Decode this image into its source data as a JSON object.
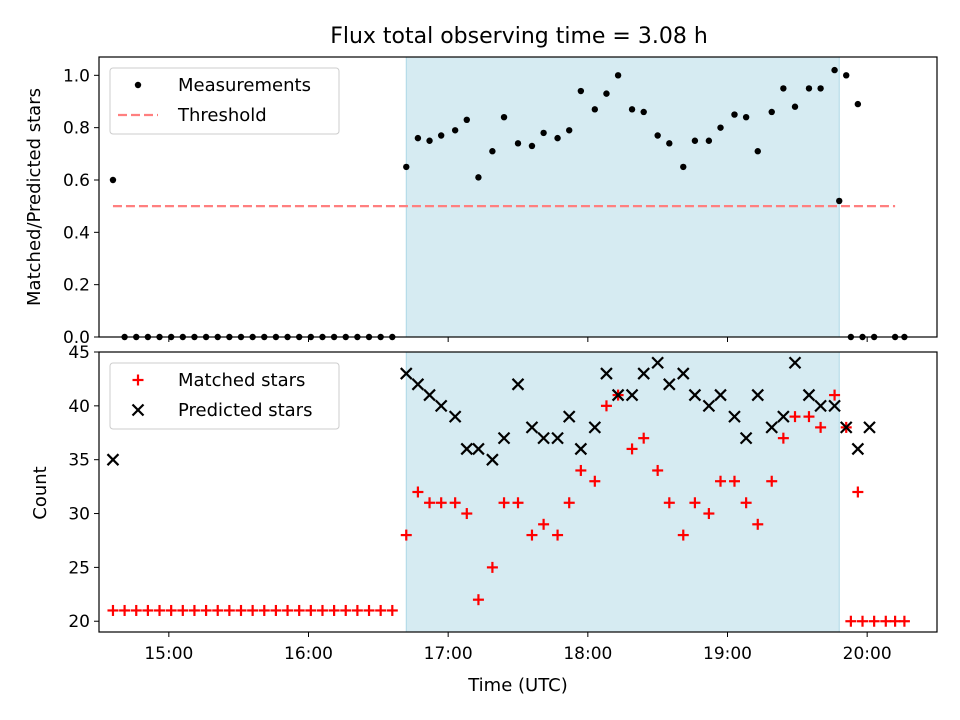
{
  "chart_data": {
    "title": "Flux total observing time = 3.08 h",
    "xlabel": "Time (UTC)",
    "x_ticks": [
      "15:00",
      "16:00",
      "17:00",
      "18:00",
      "19:00",
      "20:00"
    ],
    "x_range": [
      "14:30",
      "20:30"
    ],
    "observing_window": {
      "start": "16:42",
      "end": "19:48",
      "color": "#add8e6"
    },
    "top": {
      "type": "scatter",
      "ylabel": "Matched/Predicted stars",
      "ylim": [
        0,
        1.07
      ],
      "y_ticks": [
        "0.0",
        "0.2",
        "0.4",
        "0.6",
        "0.8",
        "1.0"
      ],
      "legend_position": "top-left",
      "series": [
        {
          "name": "Measurements",
          "type": "scatter",
          "color": "#000000",
          "marker": "dot",
          "points": [
            [
              "14:36",
              0.6
            ],
            [
              "14:41",
              0.0
            ],
            [
              "14:46",
              0.0
            ],
            [
              "14:51",
              0.0
            ],
            [
              "14:56",
              0.0
            ],
            [
              "15:01",
              0.0
            ],
            [
              "15:06",
              0.0
            ],
            [
              "15:11",
              0.0
            ],
            [
              "15:16",
              0.0
            ],
            [
              "15:21",
              0.0
            ],
            [
              "15:26",
              0.0
            ],
            [
              "15:31",
              0.0
            ],
            [
              "15:36",
              0.0
            ],
            [
              "15:41",
              0.0
            ],
            [
              "15:46",
              0.0
            ],
            [
              "15:51",
              0.0
            ],
            [
              "15:56",
              0.0
            ],
            [
              "16:01",
              0.0
            ],
            [
              "16:06",
              0.0
            ],
            [
              "16:11",
              0.0
            ],
            [
              "16:16",
              0.0
            ],
            [
              "16:21",
              0.0
            ],
            [
              "16:26",
              0.0
            ],
            [
              "16:31",
              0.0
            ],
            [
              "16:36",
              0.0
            ],
            [
              "16:42",
              0.65
            ],
            [
              "16:47",
              0.76
            ],
            [
              "16:52",
              0.75
            ],
            [
              "16:57",
              0.77
            ],
            [
              "17:03",
              0.79
            ],
            [
              "17:08",
              0.83
            ],
            [
              "17:13",
              0.61
            ],
            [
              "17:19",
              0.71
            ],
            [
              "17:24",
              0.84
            ],
            [
              "17:30",
              0.74
            ],
            [
              "17:36",
              0.73
            ],
            [
              "17:41",
              0.78
            ],
            [
              "17:47",
              0.76
            ],
            [
              "17:52",
              0.79
            ],
            [
              "17:57",
              0.94
            ],
            [
              "18:03",
              0.87
            ],
            [
              "18:08",
              0.93
            ],
            [
              "18:13",
              1.0
            ],
            [
              "18:19",
              0.87
            ],
            [
              "18:24",
              0.86
            ],
            [
              "18:30",
              0.77
            ],
            [
              "18:35",
              0.74
            ],
            [
              "18:41",
              0.65
            ],
            [
              "18:46",
              0.75
            ],
            [
              "18:52",
              0.75
            ],
            [
              "18:57",
              0.8
            ],
            [
              "19:03",
              0.85
            ],
            [
              "19:08",
              0.84
            ],
            [
              "19:13",
              0.71
            ],
            [
              "19:19",
              0.86
            ],
            [
              "19:24",
              0.95
            ],
            [
              "19:29",
              0.88
            ],
            [
              "19:35",
              0.95
            ],
            [
              "19:40",
              0.95
            ],
            [
              "19:46",
              1.02
            ],
            [
              "19:51",
              1.0
            ],
            [
              "19:56",
              0.89
            ],
            [
              "19:48",
              0.52
            ],
            [
              "19:53",
              0.0
            ],
            [
              "19:58",
              0.0
            ],
            [
              "20:03",
              0.0
            ],
            [
              "20:12",
              0.0
            ],
            [
              "20:16",
              0.0
            ]
          ]
        },
        {
          "name": "Threshold",
          "type": "line",
          "color": "#ff7f7f",
          "dash": true,
          "points": [
            [
              "14:36",
              0.5
            ],
            [
              "20:12",
              0.5
            ]
          ]
        }
      ]
    },
    "bottom": {
      "type": "scatter",
      "ylabel": "Count",
      "ylim": [
        19,
        45
      ],
      "y_ticks": [
        "20",
        "25",
        "30",
        "35",
        "40",
        "45"
      ],
      "legend_position": "top-left",
      "series": [
        {
          "name": "Matched stars",
          "type": "scatter",
          "color": "#ff0000",
          "marker": "plus",
          "points": [
            [
              "14:36",
              21
            ],
            [
              "14:41",
              21
            ],
            [
              "14:46",
              21
            ],
            [
              "14:51",
              21
            ],
            [
              "14:56",
              21
            ],
            [
              "15:01",
              21
            ],
            [
              "15:06",
              21
            ],
            [
              "15:11",
              21
            ],
            [
              "15:16",
              21
            ],
            [
              "15:21",
              21
            ],
            [
              "15:26",
              21
            ],
            [
              "15:31",
              21
            ],
            [
              "15:36",
              21
            ],
            [
              "15:41",
              21
            ],
            [
              "15:46",
              21
            ],
            [
              "15:51",
              21
            ],
            [
              "15:56",
              21
            ],
            [
              "16:01",
              21
            ],
            [
              "16:06",
              21
            ],
            [
              "16:11",
              21
            ],
            [
              "16:16",
              21
            ],
            [
              "16:21",
              21
            ],
            [
              "16:26",
              21
            ],
            [
              "16:31",
              21
            ],
            [
              "16:36",
              21
            ],
            [
              "16:42",
              28
            ],
            [
              "16:47",
              32
            ],
            [
              "16:52",
              31
            ],
            [
              "16:57",
              31
            ],
            [
              "17:03",
              31
            ],
            [
              "17:08",
              30
            ],
            [
              "17:13",
              22
            ],
            [
              "17:19",
              25
            ],
            [
              "17:24",
              31
            ],
            [
              "17:30",
              31
            ],
            [
              "17:36",
              28
            ],
            [
              "17:41",
              29
            ],
            [
              "17:47",
              28
            ],
            [
              "17:52",
              31
            ],
            [
              "17:57",
              34
            ],
            [
              "18:03",
              33
            ],
            [
              "18:08",
              40
            ],
            [
              "18:13",
              41
            ],
            [
              "18:19",
              36
            ],
            [
              "18:24",
              37
            ],
            [
              "18:30",
              34
            ],
            [
              "18:35",
              31
            ],
            [
              "18:41",
              28
            ],
            [
              "18:46",
              31
            ],
            [
              "18:52",
              30
            ],
            [
              "18:57",
              33
            ],
            [
              "19:03",
              33
            ],
            [
              "19:08",
              31
            ],
            [
              "19:13",
              29
            ],
            [
              "19:19",
              33
            ],
            [
              "19:24",
              37
            ],
            [
              "19:29",
              39
            ],
            [
              "19:35",
              39
            ],
            [
              "19:40",
              38
            ],
            [
              "19:46",
              41
            ],
            [
              "19:51",
              38
            ],
            [
              "19:56",
              32
            ],
            [
              "19:53",
              20
            ],
            [
              "19:58",
              20
            ],
            [
              "20:03",
              20
            ],
            [
              "20:08",
              20
            ],
            [
              "20:12",
              20
            ],
            [
              "20:16",
              20
            ]
          ]
        },
        {
          "name": "Predicted stars",
          "type": "scatter",
          "color": "#000000",
          "marker": "x",
          "points": [
            [
              "14:36",
              35
            ],
            [
              "16:42",
              43
            ],
            [
              "16:47",
              42
            ],
            [
              "16:52",
              41
            ],
            [
              "16:57",
              40
            ],
            [
              "17:03",
              39
            ],
            [
              "17:08",
              36
            ],
            [
              "17:13",
              36
            ],
            [
              "17:19",
              35
            ],
            [
              "17:24",
              37
            ],
            [
              "17:30",
              42
            ],
            [
              "17:36",
              38
            ],
            [
              "17:41",
              37
            ],
            [
              "17:47",
              37
            ],
            [
              "17:52",
              39
            ],
            [
              "17:57",
              36
            ],
            [
              "18:03",
              38
            ],
            [
              "18:08",
              43
            ],
            [
              "18:13",
              41
            ],
            [
              "18:19",
              41
            ],
            [
              "18:24",
              43
            ],
            [
              "18:30",
              44
            ],
            [
              "18:35",
              42
            ],
            [
              "18:41",
              43
            ],
            [
              "18:46",
              41
            ],
            [
              "18:52",
              40
            ],
            [
              "18:57",
              41
            ],
            [
              "19:03",
              39
            ],
            [
              "19:08",
              37
            ],
            [
              "19:13",
              41
            ],
            [
              "19:19",
              38
            ],
            [
              "19:24",
              39
            ],
            [
              "19:29",
              44
            ],
            [
              "19:35",
              41
            ],
            [
              "19:40",
              40
            ],
            [
              "19:46",
              40
            ],
            [
              "19:51",
              38
            ],
            [
              "19:56",
              36
            ],
            [
              "20:01",
              38
            ]
          ]
        }
      ]
    }
  }
}
